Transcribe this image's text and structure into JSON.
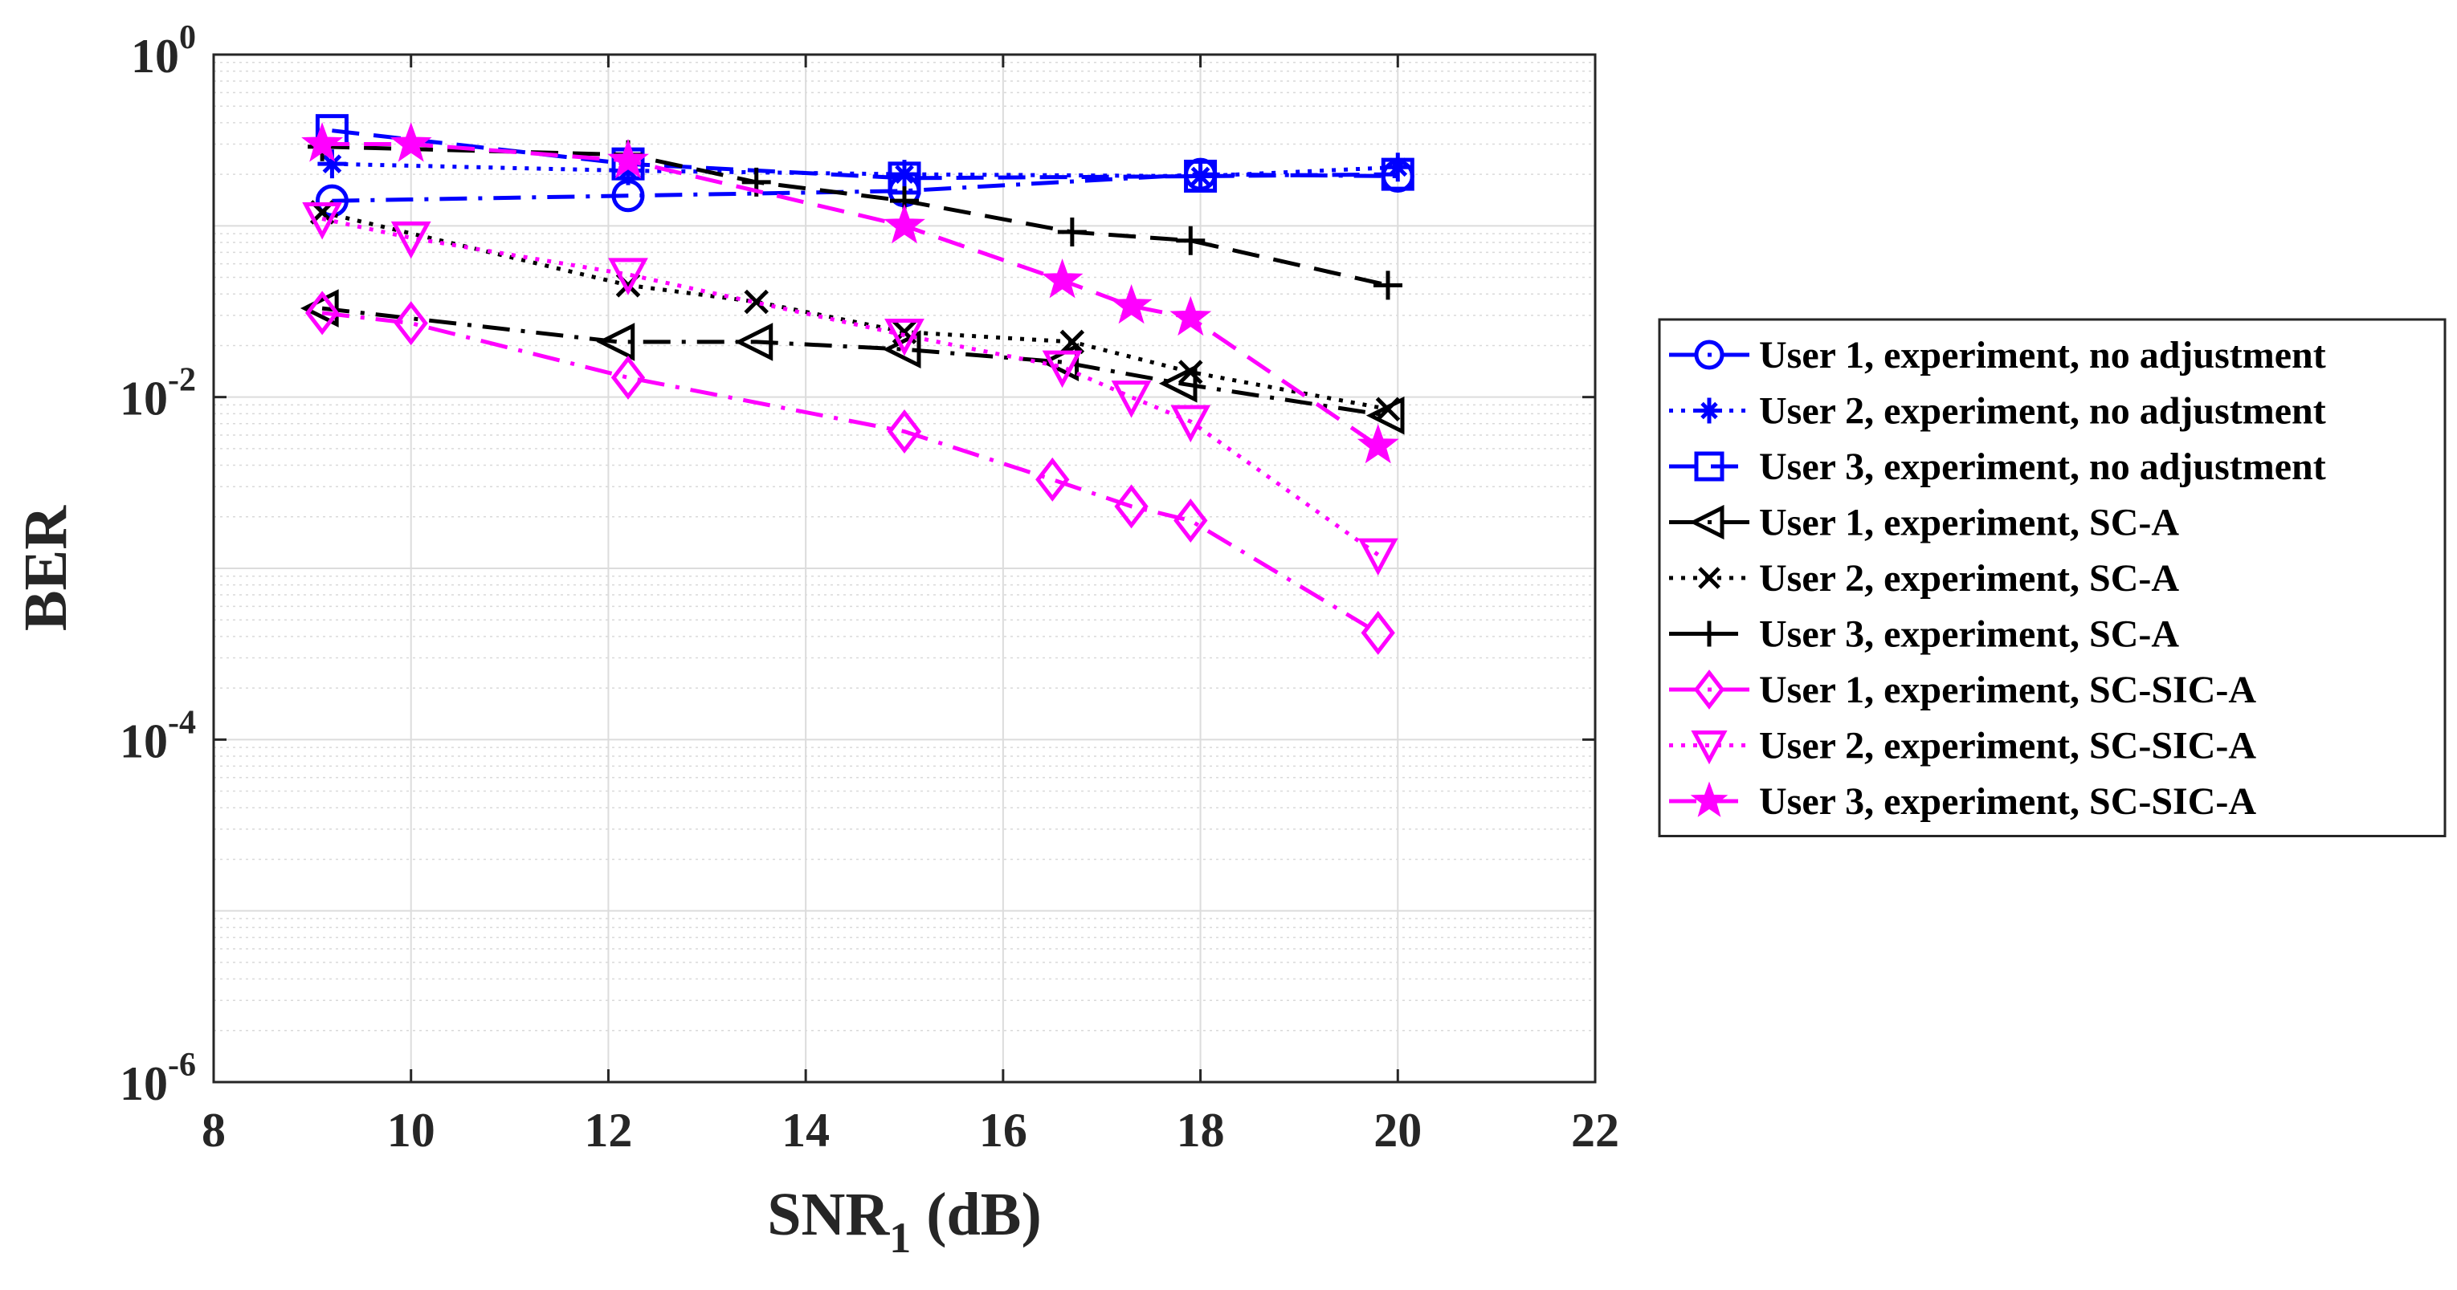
{
  "chart_data": {
    "type": "line",
    "title": "",
    "xlabel": "SNR",
    "xlabel_sub": "1",
    "xlabel_suffix": "(dB)",
    "ylabel": "BER",
    "xlim": [
      8,
      22
    ],
    "ylim": [
      1e-06,
      1
    ],
    "y_scale": "log",
    "grid": true,
    "minor_grid": true,
    "x_ticks": [
      8,
      10,
      12,
      14,
      16,
      18,
      20,
      22
    ],
    "y_ticks": [
      {
        "value": 1,
        "base": "10",
        "exp": "0"
      },
      {
        "value": 0.01,
        "base": "10",
        "exp": "-2"
      },
      {
        "value": 0.0001,
        "base": "10",
        "exp": "-4"
      },
      {
        "value": 1e-06,
        "base": "10",
        "exp": "-6"
      }
    ],
    "legend_position": "outside-right",
    "series": [
      {
        "name": "User 1, experiment, no adjustment",
        "color": "#0000ff",
        "dash": "dashdot",
        "marker": "circle",
        "points": [
          [
            9.2,
            0.14
          ],
          [
            12.2,
            0.15
          ],
          [
            15.0,
            0.16
          ],
          [
            18.0,
            0.2
          ],
          [
            20.0,
            0.195
          ]
        ]
      },
      {
        "name": "User 2, experiment, no adjustment",
        "color": "#0000ff",
        "dash": "dotted",
        "marker": "asterisk",
        "points": [
          [
            9.2,
            0.23
          ],
          [
            12.2,
            0.21
          ],
          [
            15.0,
            0.2
          ],
          [
            18.0,
            0.195
          ],
          [
            20.0,
            0.22
          ]
        ]
      },
      {
        "name": "User 3, experiment, no adjustment",
        "color": "#0000ff",
        "dash": "dashed",
        "marker": "square",
        "points": [
          [
            9.2,
            0.36
          ],
          [
            12.2,
            0.23
          ],
          [
            15.0,
            0.19
          ],
          [
            18.0,
            0.195
          ],
          [
            20.0,
            0.2
          ]
        ]
      },
      {
        "name": "User 1, experiment, SC-A",
        "color": "#000000",
        "dash": "dashdot",
        "marker": "triangle-left",
        "points": [
          [
            9.1,
            0.033
          ],
          [
            12.1,
            0.021
          ],
          [
            13.5,
            0.021
          ],
          [
            15.0,
            0.019
          ],
          [
            16.6,
            0.016
          ],
          [
            17.8,
            0.012
          ],
          [
            19.9,
            0.0078
          ]
        ]
      },
      {
        "name": "User 2, experiment, SC-A",
        "color": "#000000",
        "dash": "dotted",
        "marker": "x",
        "points": [
          [
            9.1,
            0.12
          ],
          [
            12.2,
            0.045
          ],
          [
            13.5,
            0.036
          ],
          [
            15.0,
            0.024
          ],
          [
            16.7,
            0.021
          ],
          [
            17.9,
            0.014
          ],
          [
            19.9,
            0.0085
          ]
        ]
      },
      {
        "name": "User 3, experiment, SC-A",
        "color": "#000000",
        "dash": "dashed",
        "marker": "plus",
        "points": [
          [
            9.1,
            0.29
          ],
          [
            12.2,
            0.26
          ],
          [
            13.5,
            0.18
          ],
          [
            15.0,
            0.14
          ],
          [
            16.7,
            0.092
          ],
          [
            17.9,
            0.082
          ],
          [
            19.9,
            0.045
          ]
        ]
      },
      {
        "name": "User 1, experiment, SC-SIC-A",
        "color": "#ff00ff",
        "dash": "dashdot",
        "marker": "diamond",
        "points": [
          [
            9.1,
            0.031
          ],
          [
            10.0,
            0.027
          ],
          [
            12.2,
            0.013
          ],
          [
            15.0,
            0.0063
          ],
          [
            16.5,
            0.0033
          ],
          [
            17.3,
            0.0023
          ],
          [
            17.9,
            0.0019
          ],
          [
            19.8,
            0.00042
          ]
        ]
      },
      {
        "name": "User 2, experiment, SC-SIC-A",
        "color": "#ff00ff",
        "dash": "dotted",
        "marker": "triangle-down",
        "points": [
          [
            9.1,
            0.11
          ],
          [
            10.0,
            0.085
          ],
          [
            12.2,
            0.052
          ],
          [
            15.0,
            0.023
          ],
          [
            16.6,
            0.015
          ],
          [
            17.3,
            0.01
          ],
          [
            17.9,
            0.0072
          ],
          [
            19.8,
            0.0012
          ]
        ]
      },
      {
        "name": "User 3, experiment, SC-SIC-A",
        "color": "#ff00ff",
        "dash": "dashed",
        "marker": "star",
        "points": [
          [
            9.1,
            0.3
          ],
          [
            10.0,
            0.3
          ],
          [
            12.2,
            0.24
          ],
          [
            15.0,
            0.1
          ],
          [
            16.6,
            0.048
          ],
          [
            17.3,
            0.034
          ],
          [
            17.9,
            0.029
          ],
          [
            19.8,
            0.0052
          ]
        ]
      }
    ]
  }
}
